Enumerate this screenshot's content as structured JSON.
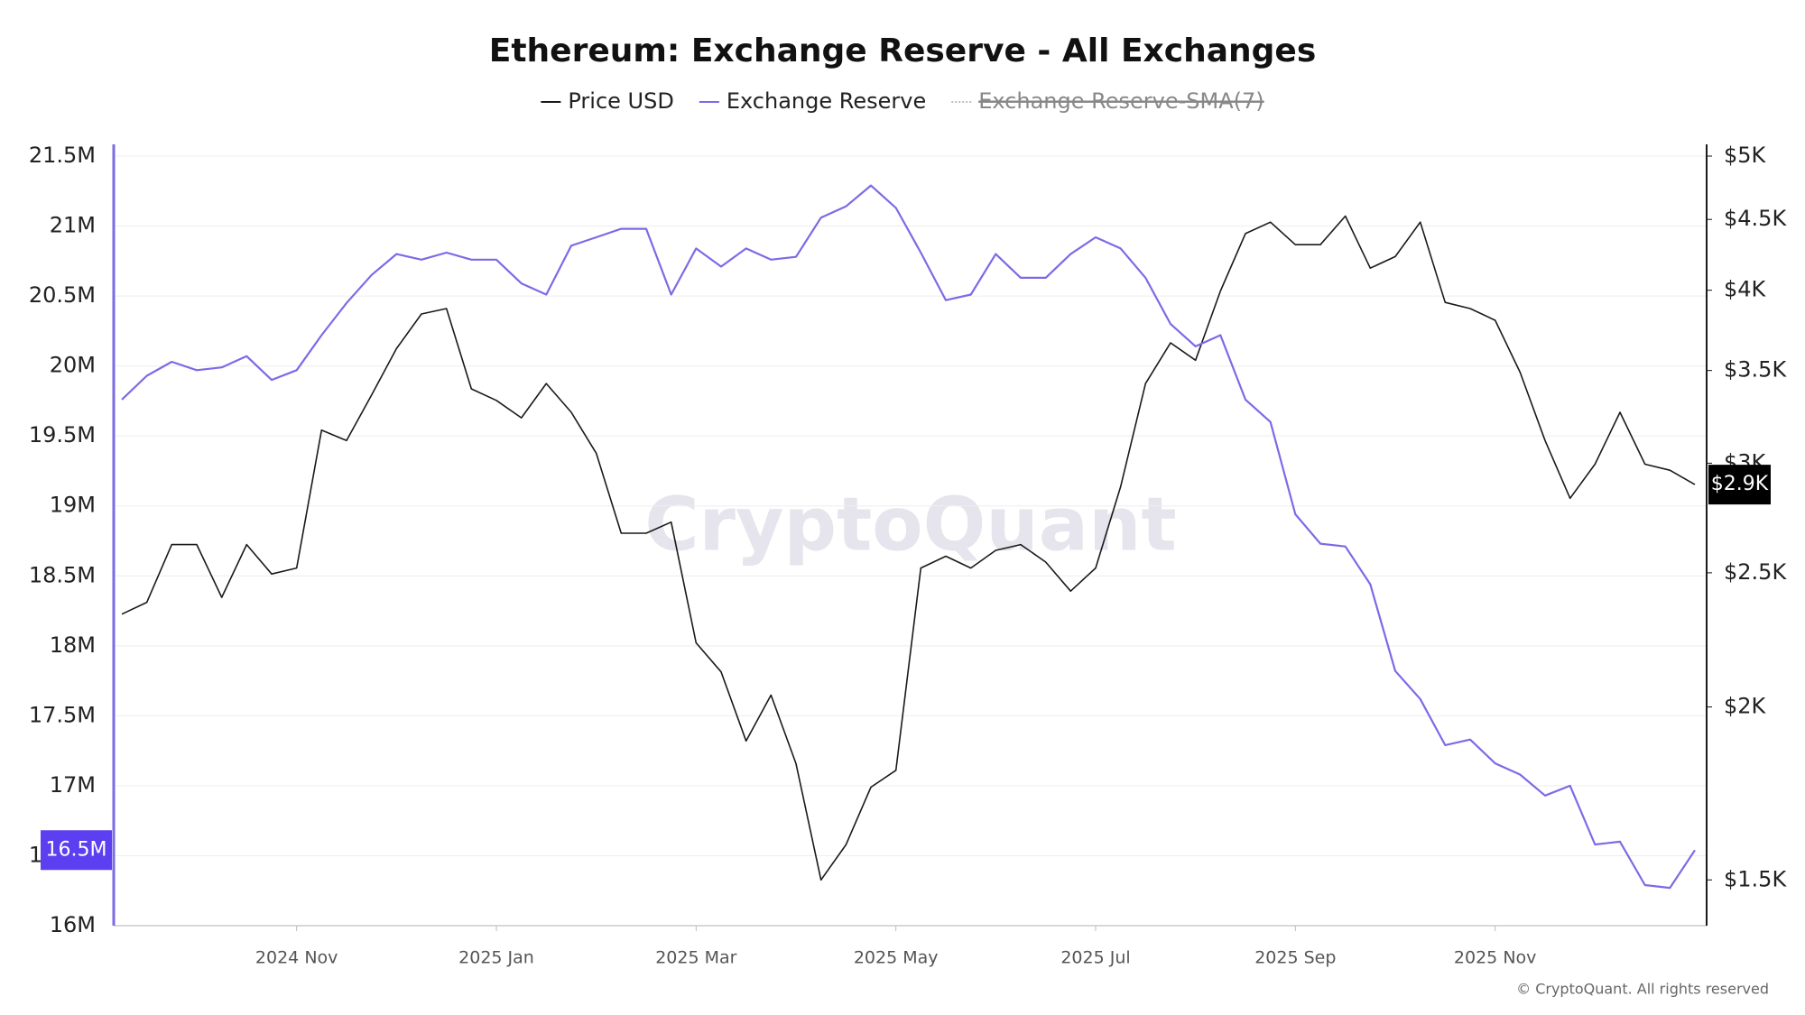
{
  "chart_data": {
    "type": "line",
    "title": "Ethereum: Exchange Reserve - All Exchanges",
    "watermark": "CryptoQuant",
    "footer": "© CryptoQuant. All rights reserved",
    "categories": [
      null,
      null,
      null,
      null,
      null,
      null,
      null,
      "2024 Nov",
      null,
      null,
      null,
      null,
      null,
      null,
      null,
      "2025 Jan",
      null,
      null,
      null,
      null,
      null,
      null,
      null,
      "2025 Mar",
      null,
      null,
      null,
      null,
      null,
      null,
      null,
      "2025 May",
      null,
      null,
      null,
      null,
      null,
      null,
      null,
      "2025 Jul",
      null,
      null,
      null,
      null,
      null,
      null,
      null,
      "2025 Sep",
      null,
      null,
      null,
      null,
      null,
      null,
      null,
      "2025 Nov",
      null,
      null,
      null,
      null,
      null,
      null,
      null,
      null
    ],
    "series": [
      {
        "name": "Price USD",
        "color": "#1a1a1a",
        "axis": "y2",
        "values": [
          2334,
          2380,
          2620,
          2620,
          2400,
          2620,
          2495,
          2520,
          3170,
          3115,
          3360,
          3630,
          3845,
          3880,
          3395,
          3330,
          3235,
          3425,
          3265,
          3050,
          2670,
          2670,
          2720,
          2225,
          2120,
          1890,
          2040,
          1820,
          1500,
          1590,
          1750,
          1800,
          2520,
          2570,
          2520,
          2595,
          2620,
          2545,
          2425,
          2520,
          2885,
          3425,
          3665,
          3560,
          3995,
          4395,
          4480,
          4315,
          4315,
          4525,
          4150,
          4230,
          4480,
          3920,
          3880,
          3805,
          3490,
          3115,
          2830,
          2995,
          3265,
          2995,
          2965,
          2895
        ],
        "value_labels": [
          null,
          null,
          null,
          null,
          null,
          null,
          null,
          null,
          null,
          null,
          null,
          null,
          null,
          null,
          null,
          null,
          null,
          null,
          null,
          null,
          null,
          null,
          null,
          null,
          null,
          null,
          null,
          null,
          null,
          null,
          null,
          null,
          null,
          null,
          null,
          null,
          null,
          null,
          null,
          null,
          null,
          null,
          null,
          null,
          null,
          null,
          null,
          null,
          null,
          null,
          null,
          null,
          null,
          null,
          null,
          null,
          null,
          null,
          null,
          null,
          null,
          null,
          null,
          "$2.9K"
        ]
      },
      {
        "name": "Exchange Reserve",
        "color": "#7b6be6",
        "values": [
          19760000,
          19930000,
          20030000,
          19970000,
          19990000,
          20070000,
          19900000,
          19970000,
          20220000,
          20450000,
          20650000,
          20800000,
          20760000,
          20810000,
          20760000,
          20760000,
          20590000,
          20510000,
          20860000,
          20920000,
          20980000,
          20980000,
          20510000,
          20840000,
          20710000,
          20840000,
          20760000,
          20780000,
          21060000,
          21140000,
          21290000,
          21130000,
          20810000,
          20470000,
          20510000,
          20800000,
          20630000,
          20630000,
          20800000,
          20920000,
          20840000,
          20630000,
          20300000,
          20140000,
          20220000,
          19760000,
          19600000,
          18940000,
          18730000,
          18710000,
          18440000,
          17820000,
          17620000,
          17290000,
          17330000,
          17160000,
          17080000,
          16930000,
          17000000,
          16580000,
          16600000,
          16290000,
          16270000,
          16540000
        ],
        "value_labels": [
          null,
          null,
          null,
          null,
          null,
          null,
          null,
          null,
          null,
          null,
          null,
          null,
          null,
          null,
          null,
          null,
          null,
          null,
          null,
          null,
          null,
          null,
          null,
          null,
          null,
          null,
          null,
          null,
          null,
          null,
          null,
          null,
          null,
          null,
          null,
          null,
          null,
          null,
          null,
          null,
          null,
          null,
          null,
          null,
          null,
          null,
          null,
          null,
          null,
          null,
          null,
          null,
          null,
          null,
          null,
          null,
          null,
          null,
          null,
          null,
          null,
          null,
          null,
          "16.5M"
        ]
      },
      {
        "name": "Exchange Reserve-SMA(7)",
        "color": "#999999",
        "visible": false
      }
    ],
    "ylim": [
      16000000,
      21500000
    ],
    "yticks": [
      {
        "value": 16000000,
        "label": "16M"
      },
      {
        "value": 16500000,
        "label": "16.5M"
      },
      {
        "value": 17000000,
        "label": "17M"
      },
      {
        "value": 17500000,
        "label": "17.5M"
      },
      {
        "value": 18000000,
        "label": "18M"
      },
      {
        "value": 18500000,
        "label": "18.5M"
      },
      {
        "value": 19000000,
        "label": "19M"
      },
      {
        "value": 19500000,
        "label": "19.5M"
      },
      {
        "value": 20000000,
        "label": "20M"
      },
      {
        "value": 20500000,
        "label": "20.5M"
      },
      {
        "value": 21000000,
        "label": "21M"
      },
      {
        "value": 21500000,
        "label": "21.5M"
      }
    ],
    "y2scale": "log",
    "y2lim": [
      1390,
      5000
    ],
    "y2ticks": [
      {
        "value": 1500,
        "label": "$1.5K"
      },
      {
        "value": 2000,
        "label": "$2K"
      },
      {
        "value": 2500,
        "label": "$2.5K"
      },
      {
        "value": 3000,
        "label": "$3K"
      },
      {
        "value": 3500,
        "label": "$3.5K"
      },
      {
        "value": 4000,
        "label": "$4K"
      },
      {
        "value": 4500,
        "label": "$4.5K"
      },
      {
        "value": 5000,
        "label": "$5K"
      }
    ],
    "grid": true
  }
}
